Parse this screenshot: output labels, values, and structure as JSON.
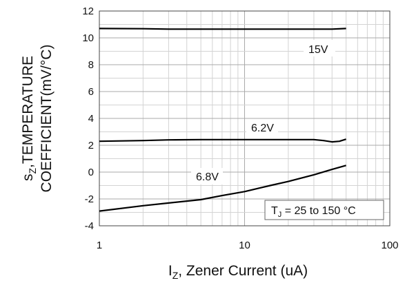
{
  "chart_data": {
    "type": "line",
    "xscale": "log",
    "xlim": [
      1,
      100
    ],
    "ylim": [
      -4,
      12
    ],
    "grid": true,
    "xticks": [
      "1",
      "10",
      "100"
    ],
    "yticks": [
      "-4",
      "-2",
      "0",
      "2",
      "4",
      "6",
      "8",
      "10",
      "12"
    ],
    "xlabel_main": "I",
    "xlabel_sub": "Z",
    "xlabel_rest": ", Zener Current (uA)",
    "ylabel_line1_main": "s",
    "ylabel_line1_sub": "Z",
    "ylabel_line1_rest": ",TEMPERATURE",
    "ylabel_line2": "COEFFICIENT(mV/°C)",
    "annotation": {
      "pre": "T",
      "sub": "J",
      "post": " = 25 to 150 °C"
    },
    "series": [
      {
        "name": "15V",
        "x": [
          1,
          2,
          3,
          5,
          10,
          20,
          30,
          40,
          50
        ],
        "y": [
          10.7,
          10.68,
          10.65,
          10.65,
          10.65,
          10.65,
          10.65,
          10.65,
          10.7
        ]
      },
      {
        "name": "6.2V",
        "x": [
          1,
          2,
          3,
          5,
          10,
          20,
          30,
          35,
          40,
          45,
          50
        ],
        "y": [
          2.3,
          2.35,
          2.4,
          2.42,
          2.42,
          2.42,
          2.42,
          2.35,
          2.25,
          2.3,
          2.45
        ]
      },
      {
        "name": "6.8V",
        "x": [
          1,
          2,
          3,
          5,
          7,
          10,
          15,
          20,
          30,
          40,
          50
        ],
        "y": [
          -2.9,
          -2.5,
          -2.3,
          -2.05,
          -1.75,
          -1.45,
          -1.0,
          -0.7,
          -0.2,
          0.2,
          0.5
        ]
      }
    ],
    "series_labels": [
      "15V",
      "6.2V",
      "6.8V"
    ]
  }
}
